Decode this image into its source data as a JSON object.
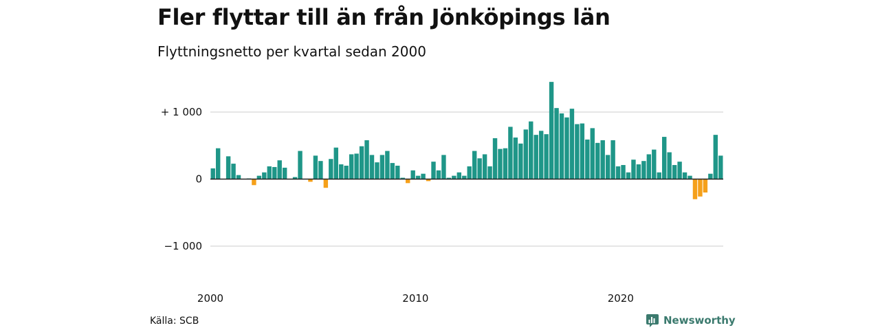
{
  "title": "Fler flyttar till än från Jönköpings län",
  "subtitle": "Flyttningsnetto per kvartal sedan 2000",
  "source": "Källa: SCB",
  "brand": "Newsworthy",
  "colors": {
    "positive": "#1f9688",
    "negative": "#f5a01a",
    "grid": "#dddddd",
    "brand": "#3b7a6e"
  },
  "chart_data": {
    "type": "bar",
    "x_start": "2000 Q1",
    "x_ticks": [
      {
        "label": "2000",
        "quarter_index": 0
      },
      {
        "label": "2010",
        "quarter_index": 40
      },
      {
        "label": "2020",
        "quarter_index": 80
      }
    ],
    "y_ticks": [
      {
        "label": "+ 1 000",
        "value": 1000
      },
      {
        "label": "0",
        "value": 0
      },
      {
        "label": "−1 000",
        "value": -1000
      }
    ],
    "ylim": [
      -1000,
      1450
    ],
    "grid": true,
    "values": [
      160,
      460,
      0,
      340,
      230,
      60,
      0,
      10,
      -90,
      50,
      100,
      190,
      180,
      280,
      170,
      0,
      30,
      420,
      0,
      -40,
      350,
      270,
      -130,
      300,
      470,
      220,
      200,
      370,
      380,
      490,
      580,
      360,
      250,
      360,
      420,
      240,
      200,
      20,
      -60,
      130,
      50,
      80,
      -30,
      260,
      130,
      360,
      20,
      50,
      100,
      50,
      190,
      420,
      310,
      370,
      190,
      610,
      450,
      460,
      780,
      620,
      530,
      740,
      860,
      660,
      720,
      670,
      1450,
      1060,
      980,
      920,
      1050,
      820,
      830,
      590,
      760,
      540,
      580,
      360,
      580,
      190,
      210,
      100,
      290,
      220,
      270,
      370,
      440,
      100,
      630,
      400,
      210,
      260,
      100,
      50,
      -300,
      -260,
      -200,
      80,
      660,
      350
    ]
  }
}
